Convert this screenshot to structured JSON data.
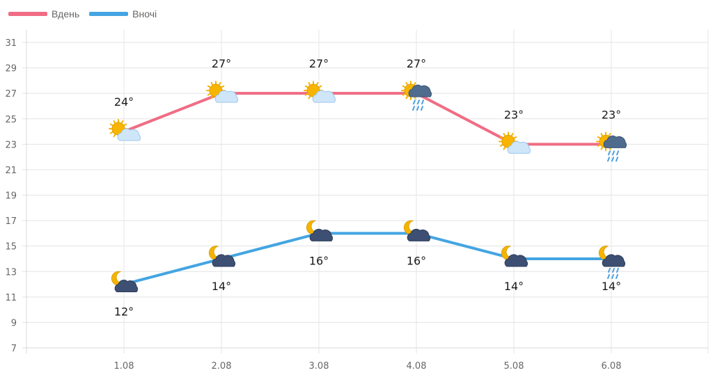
{
  "chart_data": {
    "type": "line",
    "categories": [
      "1.08",
      "2.08",
      "3.08",
      "4.08",
      "5.08",
      "6.08"
    ],
    "series": [
      {
        "name": "Вдень",
        "color": "#f06c84",
        "values": [
          24,
          27,
          27,
          27,
          23,
          23
        ],
        "labels": [
          "24°",
          "27°",
          "27°",
          "27°",
          "23°",
          "23°"
        ],
        "icons": [
          "sun-cloud-icon",
          "sun-cloud-icon",
          "sun-cloud-icon",
          "sun-rain-cloud-icon",
          "sun-cloud-icon",
          "sun-rain-cloud-icon"
        ]
      },
      {
        "name": "Вночі",
        "color": "#44a5e2",
        "values": [
          12,
          14,
          16,
          16,
          14,
          14
        ],
        "labels": [
          "12°",
          "14°",
          "16°",
          "16°",
          "14°",
          "14°"
        ],
        "icons": [
          "moon-cloud-icon",
          "moon-cloud-icon",
          "moon-cloud-icon",
          "moon-cloud-icon",
          "moon-cloud-icon",
          "moon-rain-cloud-icon"
        ]
      }
    ],
    "y_ticks": [
      "7",
      "9",
      "11",
      "13",
      "15",
      "17",
      "19",
      "21",
      "23",
      "25",
      "27",
      "29",
      "31"
    ],
    "ylim": [
      7,
      31
    ],
    "grid": true,
    "legend_position": "top-left"
  }
}
